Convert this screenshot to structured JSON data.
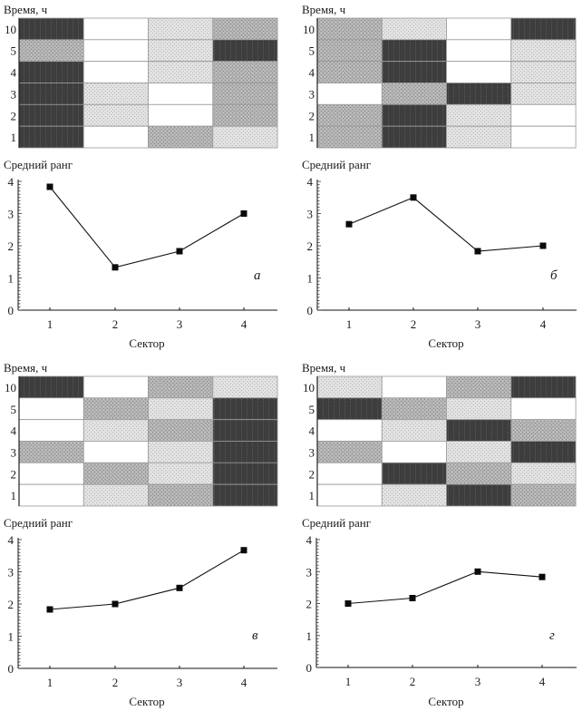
{
  "figure": {
    "heatmap_ylabel": "Время, ч",
    "line_ylabel": "Средний ранг",
    "line_xlabel": "Сектор",
    "rank_shades": {
      "1": "#ffffff",
      "2": "#d9d9d9",
      "3": "#afafaf",
      "4": "#3d3d3d"
    }
  },
  "chart_data": [
    {
      "panel": "а",
      "heatmap": {
        "type": "heatmap",
        "ylabel": "Время, ч",
        "row_labels": [
          "10",
          "5",
          "4",
          "3",
          "2",
          "1"
        ],
        "columns": [
          "1",
          "2",
          "3",
          "4"
        ],
        "ranks": [
          [
            4,
            1,
            2,
            3
          ],
          [
            3,
            1,
            2,
            4
          ],
          [
            4,
            1,
            2,
            3
          ],
          [
            4,
            2,
            1,
            3
          ],
          [
            4,
            2,
            1,
            3
          ],
          [
            4,
            1,
            3,
            2
          ]
        ]
      },
      "line": {
        "type": "line",
        "title": "",
        "xlabel": "Сектор",
        "ylabel": "Средний ранг",
        "categories": [
          "1",
          "2",
          "3",
          "4"
        ],
        "values": [
          3.83,
          1.33,
          1.83,
          3.0
        ],
        "ylim": [
          0,
          4
        ],
        "yticks": [
          "0",
          "1",
          "2",
          "3",
          "4"
        ],
        "annotation": "а"
      }
    },
    {
      "panel": "б",
      "heatmap": {
        "type": "heatmap",
        "ylabel": "Время, ч",
        "row_labels": [
          "10",
          "5",
          "4",
          "3",
          "2",
          "1"
        ],
        "columns": [
          "1",
          "2",
          "3",
          "4"
        ],
        "ranks": [
          [
            3,
            2,
            1,
            4
          ],
          [
            3,
            4,
            1,
            2
          ],
          [
            3,
            4,
            1,
            2
          ],
          [
            1,
            3,
            4,
            2
          ],
          [
            3,
            4,
            2,
            1
          ],
          [
            3,
            4,
            2,
            1
          ]
        ]
      },
      "line": {
        "type": "line",
        "title": "",
        "xlabel": "Сектор",
        "ylabel": "Средний ранг",
        "categories": [
          "1",
          "2",
          "3",
          "4"
        ],
        "values": [
          2.67,
          3.5,
          1.83,
          2.0
        ],
        "ylim": [
          0,
          4
        ],
        "yticks": [
          "0",
          "1",
          "2",
          "3",
          "4"
        ],
        "annotation": "б"
      }
    },
    {
      "panel": "в",
      "heatmap": {
        "type": "heatmap",
        "ylabel": "Время, ч",
        "row_labels": [
          "10",
          "5",
          "4",
          "3",
          "2",
          "1"
        ],
        "columns": [
          "1",
          "2",
          "3",
          "4"
        ],
        "ranks": [
          [
            4,
            1,
            3,
            2
          ],
          [
            1,
            3,
            2,
            4
          ],
          [
            1,
            2,
            3,
            4
          ],
          [
            3,
            1,
            2,
            4
          ],
          [
            1,
            3,
            2,
            4
          ],
          [
            1,
            2,
            3,
            4
          ]
        ]
      },
      "line": {
        "type": "line",
        "title": "",
        "xlabel": "Сектор",
        "ylabel": "Средний ранг",
        "categories": [
          "1",
          "2",
          "3",
          "4"
        ],
        "values": [
          1.83,
          2.0,
          2.5,
          3.67
        ],
        "ylim": [
          0,
          4
        ],
        "yticks": [
          "0",
          "1",
          "2",
          "3",
          "4"
        ],
        "annotation": "в"
      }
    },
    {
      "panel": "г",
      "heatmap": {
        "type": "heatmap",
        "ylabel": "Время, ч",
        "row_labels": [
          "10",
          "5",
          "4",
          "3",
          "2",
          "1"
        ],
        "columns": [
          "1",
          "2",
          "3",
          "4"
        ],
        "ranks": [
          [
            2,
            1,
            3,
            4
          ],
          [
            4,
            3,
            2,
            1
          ],
          [
            1,
            2,
            4,
            3
          ],
          [
            3,
            1,
            2,
            4
          ],
          [
            1,
            4,
            3,
            2
          ],
          [
            1,
            2,
            4,
            3
          ]
        ]
      },
      "line": {
        "type": "line",
        "title": "",
        "xlabel": "Сектор",
        "ylabel": "Средний ранг",
        "categories": [
          "1",
          "2",
          "3",
          "4"
        ],
        "values": [
          2.0,
          2.17,
          3.0,
          2.83
        ],
        "ylim": [
          0,
          4
        ],
        "yticks": [
          "0",
          "1",
          "2",
          "3",
          "4"
        ],
        "annotation": "г"
      }
    }
  ]
}
